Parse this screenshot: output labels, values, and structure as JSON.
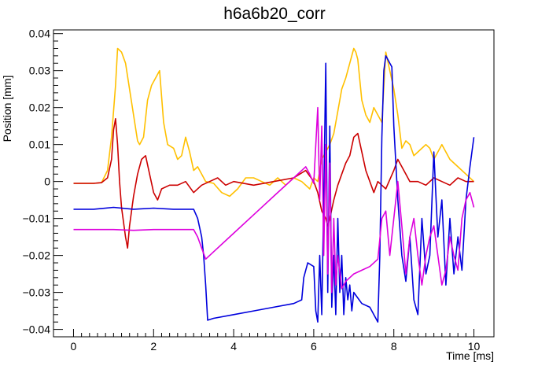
{
  "chart_data": {
    "type": "line",
    "title": "h6a6b20_corr",
    "xlabel": "Time [ms]",
    "ylabel": "Position [mm]",
    "xlim": [
      -0.5,
      10.5
    ],
    "ylim": [
      -0.042,
      0.041
    ],
    "xticks": [
      0,
      2,
      4,
      6,
      8,
      10
    ],
    "xtick_labels": [
      "0",
      "2",
      "4",
      "6",
      "8",
      "10"
    ],
    "yticks": [
      -0.04,
      -0.03,
      -0.02,
      -0.01,
      0,
      0.01,
      0.02,
      0.03,
      0.04
    ],
    "ytick_labels": [
      "−0.04",
      "−0.03",
      "−0.02",
      "−0.01",
      "0",
      "0.01",
      "0.02",
      "0.03",
      "0.04"
    ],
    "grid": false,
    "legend": "none",
    "series": [
      {
        "color": "#ffc000",
        "x": [
          0,
          0.5,
          0.7,
          0.85,
          0.95,
          1.05,
          1.1,
          1.2,
          1.3,
          1.4,
          1.5,
          1.6,
          1.65,
          1.75,
          1.85,
          1.95,
          2.0,
          2.1,
          2.15,
          2.25,
          2.35,
          2.5,
          2.6,
          2.7,
          2.8,
          2.9,
          3.0,
          3.1,
          3.2,
          3.3,
          3.5,
          3.7,
          3.9,
          4.1,
          4.3,
          4.5,
          4.7,
          4.9,
          5.1,
          5.3,
          5.5,
          5.7,
          5.9,
          6.0,
          6.1,
          6.2,
          6.3,
          6.4,
          6.5,
          6.6,
          6.7,
          6.8,
          6.9,
          7.0,
          7.05,
          7.1,
          7.2,
          7.3,
          7.4,
          7.5,
          7.6,
          7.7,
          7.8,
          7.9,
          8.0,
          8.1,
          8.2,
          8.3,
          8.4,
          8.5,
          8.6,
          8.7,
          8.8,
          8.9,
          9.0,
          9.2,
          9.4,
          9.6,
          9.8,
          10.0
        ],
        "y": [
          -0.0005,
          -0.0005,
          -0.0003,
          0.003,
          0.012,
          0.026,
          0.036,
          0.035,
          0.032,
          0.025,
          0.018,
          0.011,
          0.01,
          0.012,
          0.022,
          0.026,
          0.027,
          0.029,
          0.03,
          0.016,
          0.01,
          0.009,
          0.006,
          0.007,
          0.012,
          0.008,
          0.003,
          0.004,
          0.002,
          0.0,
          -0.0005,
          -0.003,
          -0.004,
          -0.002,
          0.001,
          0.001,
          0.0,
          -0.001,
          0.001,
          -0.001,
          0.001,
          0.0,
          -0.002,
          0.001,
          0.0,
          0.006,
          0.008,
          0.01,
          0.013,
          0.019,
          0.025,
          0.028,
          0.032,
          0.036,
          0.035,
          0.033,
          0.022,
          0.018,
          0.016,
          0.02,
          0.018,
          0.016,
          0.035,
          0.03,
          0.025,
          0.018,
          0.009,
          0.011,
          0.01,
          0.007,
          0.008,
          0.009,
          0.01,
          0.009,
          0.006,
          0.01,
          0.006,
          0.004,
          0.002,
          0.0
        ]
      },
      {
        "color": "#cc0000",
        "x": [
          0,
          0.5,
          0.7,
          0.85,
          0.95,
          1.0,
          1.05,
          1.1,
          1.15,
          1.2,
          1.3,
          1.35,
          1.4,
          1.5,
          1.6,
          1.7,
          1.8,
          1.9,
          2.0,
          2.1,
          2.2,
          2.4,
          2.6,
          2.8,
          3.0,
          3.2,
          3.4,
          3.6,
          3.8,
          4.0,
          4.5,
          5.0,
          5.5,
          5.8,
          6.0,
          6.1,
          6.2,
          6.3,
          6.35,
          6.4,
          6.5,
          6.6,
          6.7,
          6.8,
          6.9,
          7.0,
          7.1,
          7.2,
          7.3,
          7.4,
          7.5,
          7.6,
          7.8,
          8.0,
          8.1,
          8.2,
          8.3,
          8.4,
          8.6,
          8.8,
          9.0,
          9.2,
          9.4,
          9.6,
          9.8,
          10.0
        ],
        "y": [
          -0.0005,
          -0.0005,
          -0.0003,
          0.001,
          0.006,
          0.014,
          0.017,
          0.01,
          0.0,
          -0.007,
          -0.015,
          -0.018,
          -0.012,
          -0.004,
          0.002,
          0.006,
          0.007,
          0.002,
          -0.003,
          -0.005,
          -0.002,
          -0.001,
          -0.001,
          0.0,
          -0.003,
          -0.001,
          0.0,
          0.001,
          -0.001,
          0.0,
          -0.001,
          0.0,
          0.001,
          0.003,
          0.0,
          -0.003,
          -0.008,
          -0.01,
          -0.012,
          -0.01,
          -0.005,
          -0.001,
          0.002,
          0.005,
          0.007,
          0.012,
          0.013,
          0.008,
          0.003,
          0.0,
          -0.003,
          0.0,
          -0.002,
          0.003,
          0.006,
          0.004,
          0.002,
          0.0,
          0.0,
          -0.001,
          0.001,
          0.0,
          -0.001,
          0.001,
          0.0,
          0.0
        ]
      },
      {
        "color": "#0000dd",
        "x": [
          0,
          0.5,
          1.0,
          1.5,
          2.0,
          2.5,
          3.0,
          3.1,
          3.2,
          3.25,
          3.3,
          3.35,
          3.5,
          4.0,
          4.5,
          5.0,
          5.5,
          5.7,
          5.75,
          5.8,
          5.85,
          6.0,
          6.05,
          6.1,
          6.15,
          6.2,
          6.25,
          6.3,
          6.35,
          6.4,
          6.45,
          6.5,
          6.55,
          6.6,
          6.65,
          6.7,
          6.75,
          6.8,
          6.85,
          6.9,
          6.95,
          7.0,
          7.2,
          7.4,
          7.6,
          7.65,
          7.7,
          7.75,
          7.8,
          7.85,
          7.9,
          7.95,
          8.0,
          8.1,
          8.2,
          8.3,
          8.4,
          8.5,
          8.6,
          8.7,
          8.8,
          8.9,
          9.0,
          9.1,
          9.2,
          9.3,
          9.4,
          9.5,
          9.6,
          9.7,
          9.8,
          9.9,
          10.0
        ],
        "y": [
          -0.0075,
          -0.0075,
          -0.007,
          -0.0075,
          -0.0072,
          -0.0075,
          -0.0075,
          -0.01,
          -0.015,
          -0.02,
          -0.028,
          -0.0375,
          -0.037,
          -0.036,
          -0.035,
          -0.034,
          -0.033,
          -0.032,
          -0.026,
          -0.024,
          -0.022,
          -0.023,
          -0.035,
          -0.038,
          -0.02,
          -0.036,
          -0.005,
          0.032,
          -0.03,
          0.015,
          -0.034,
          -0.02,
          -0.036,
          -0.01,
          -0.03,
          -0.02,
          -0.036,
          -0.026,
          -0.032,
          -0.028,
          -0.035,
          -0.03,
          -0.033,
          -0.034,
          -0.038,
          -0.02,
          0.012,
          0.03,
          0.034,
          0.033,
          0.032,
          0.031,
          0.015,
          -0.005,
          -0.02,
          -0.027,
          -0.015,
          -0.032,
          -0.036,
          -0.01,
          -0.025,
          -0.02,
          0.008,
          -0.015,
          -0.005,
          -0.028,
          -0.01,
          -0.025,
          -0.015,
          -0.024,
          -0.005,
          0.004,
          0.012
        ]
      },
      {
        "color": "#dd00dd",
        "x": [
          0,
          0.5,
          1.0,
          1.5,
          2.0,
          2.5,
          3.0,
          3.1,
          3.2,
          3.3,
          3.5,
          4.0,
          4.5,
          5.0,
          5.5,
          5.8,
          5.9,
          6.0,
          6.1,
          6.15,
          6.2,
          6.25,
          6.3,
          6.35,
          6.4,
          6.45,
          6.5,
          6.55,
          6.6,
          6.7,
          6.8,
          6.9,
          7.0,
          7.2,
          7.4,
          7.6,
          7.7,
          7.8,
          7.9,
          8.0,
          8.1,
          8.2,
          8.3,
          8.4,
          8.5,
          8.6,
          8.7,
          8.8,
          8.9,
          9.0,
          9.1,
          9.2,
          9.3,
          9.4,
          9.5,
          9.6,
          9.7,
          9.8,
          9.9,
          10.0
        ],
        "y": [
          -0.013,
          -0.013,
          -0.013,
          -0.0132,
          -0.013,
          -0.013,
          -0.013,
          -0.015,
          -0.018,
          -0.021,
          -0.019,
          -0.014,
          -0.009,
          -0.004,
          0.001,
          0.004,
          0.002,
          -0.0005,
          0.02,
          -0.005,
          0.015,
          -0.02,
          0.01,
          -0.025,
          0.005,
          -0.03,
          -0.01,
          -0.028,
          -0.02,
          -0.029,
          -0.027,
          -0.026,
          -0.025,
          -0.024,
          -0.023,
          -0.021,
          -0.01,
          -0.008,
          -0.02,
          -0.01,
          0.0,
          -0.012,
          -0.025,
          -0.015,
          -0.01,
          -0.02,
          -0.028,
          -0.02,
          -0.015,
          -0.012,
          -0.02,
          -0.028,
          -0.024,
          -0.015,
          -0.02,
          -0.024,
          -0.01,
          -0.005,
          -0.003,
          -0.007
        ]
      }
    ]
  }
}
